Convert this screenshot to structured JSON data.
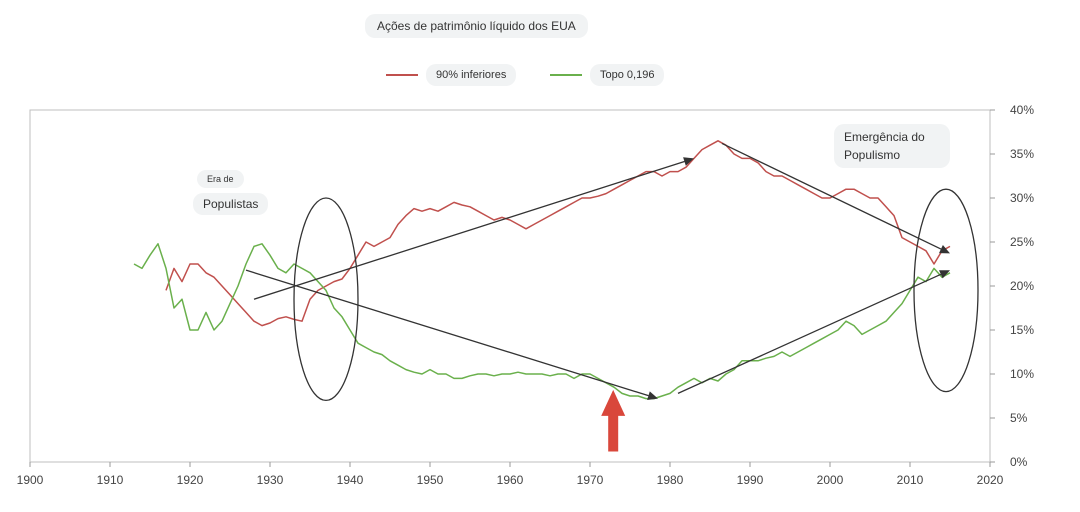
{
  "chart_data": {
    "type": "line",
    "title": "Ações de patrimônio líquido dos EUA",
    "xlabel": "",
    "ylabel": "",
    "xlim": [
      1900,
      2020
    ],
    "ylim": [
      0,
      40
    ],
    "xticks": [
      "1900",
      "1910",
      "1920",
      "1930",
      "1940",
      "1950",
      "1960",
      "1970",
      "1980",
      "1990",
      "2000",
      "2010",
      "2020"
    ],
    "yticks": [
      "0%",
      "5%",
      "10%",
      "15%",
      "20%",
      "25%",
      "30%",
      "35%",
      "40%"
    ],
    "grid": false,
    "legend_position": "top",
    "series": [
      {
        "name": "90% inferiores",
        "color": "#c0504d",
        "points": [
          [
            1917,
            19.5
          ],
          [
            1918,
            22
          ],
          [
            1919,
            20.5
          ],
          [
            1920,
            22.5
          ],
          [
            1921,
            22.5
          ],
          [
            1922,
            21.5
          ],
          [
            1923,
            21
          ],
          [
            1924,
            20
          ],
          [
            1925,
            19
          ],
          [
            1926,
            18
          ],
          [
            1927,
            17
          ],
          [
            1928,
            16
          ],
          [
            1929,
            15.5
          ],
          [
            1930,
            15.8
          ],
          [
            1931,
            16.3
          ],
          [
            1932,
            16.5
          ],
          [
            1933,
            16.2
          ],
          [
            1934,
            16
          ],
          [
            1935,
            18.5
          ],
          [
            1936,
            19.5
          ],
          [
            1937,
            20
          ],
          [
            1938,
            20.5
          ],
          [
            1939,
            20.8
          ],
          [
            1940,
            22
          ],
          [
            1941,
            23.5
          ],
          [
            1942,
            25
          ],
          [
            1943,
            24.5
          ],
          [
            1944,
            25
          ],
          [
            1945,
            25.5
          ],
          [
            1946,
            27
          ],
          [
            1947,
            28
          ],
          [
            1948,
            28.8
          ],
          [
            1949,
            28.5
          ],
          [
            1950,
            28.8
          ],
          [
            1951,
            28.5
          ],
          [
            1952,
            29
          ],
          [
            1953,
            29.5
          ],
          [
            1954,
            29.2
          ],
          [
            1955,
            29
          ],
          [
            1956,
            28.5
          ],
          [
            1957,
            28
          ],
          [
            1958,
            27.5
          ],
          [
            1959,
            27.8
          ],
          [
            1960,
            27.5
          ],
          [
            1961,
            27
          ],
          [
            1962,
            26.5
          ],
          [
            1963,
            27
          ],
          [
            1964,
            27.5
          ],
          [
            1965,
            28
          ],
          [
            1966,
            28.5
          ],
          [
            1967,
            29
          ],
          [
            1968,
            29.5
          ],
          [
            1969,
            30
          ],
          [
            1970,
            30
          ],
          [
            1971,
            30.2
          ],
          [
            1972,
            30.5
          ],
          [
            1973,
            31
          ],
          [
            1974,
            31.5
          ],
          [
            1975,
            32
          ],
          [
            1976,
            32.5
          ],
          [
            1977,
            33
          ],
          [
            1978,
            33
          ],
          [
            1979,
            32.5
          ],
          [
            1980,
            33
          ],
          [
            1981,
            33
          ],
          [
            1982,
            33.5
          ],
          [
            1983,
            34.5
          ],
          [
            1984,
            35.5
          ],
          [
            1985,
            36
          ],
          [
            1986,
            36.5
          ],
          [
            1987,
            36
          ],
          [
            1988,
            35
          ],
          [
            1989,
            34.5
          ],
          [
            1990,
            34.5
          ],
          [
            1991,
            34
          ],
          [
            1992,
            33
          ],
          [
            1993,
            32.5
          ],
          [
            1994,
            32.5
          ],
          [
            1995,
            32
          ],
          [
            1996,
            31.5
          ],
          [
            1997,
            31
          ],
          [
            1998,
            30.5
          ],
          [
            1999,
            30
          ],
          [
            2000,
            30
          ],
          [
            2001,
            30.5
          ],
          [
            2002,
            31
          ],
          [
            2003,
            31
          ],
          [
            2004,
            30.5
          ],
          [
            2005,
            30
          ],
          [
            2006,
            30
          ],
          [
            2007,
            29
          ],
          [
            2008,
            28
          ],
          [
            2009,
            25.5
          ],
          [
            2010,
            25
          ],
          [
            2011,
            24.5
          ],
          [
            2012,
            24
          ],
          [
            2013,
            22.5
          ],
          [
            2014,
            24
          ],
          [
            2015,
            24.5
          ]
        ]
      },
      {
        "name": "Topo 0,196",
        "color": "#6ab04c",
        "points": [
          [
            1913,
            22.5
          ],
          [
            1914,
            22
          ],
          [
            1915,
            23.5
          ],
          [
            1916,
            24.8
          ],
          [
            1917,
            22
          ],
          [
            1918,
            17.5
          ],
          [
            1919,
            18.5
          ],
          [
            1920,
            15
          ],
          [
            1921,
            15
          ],
          [
            1922,
            17
          ],
          [
            1923,
            15
          ],
          [
            1924,
            16
          ],
          [
            1925,
            18
          ],
          [
            1926,
            20
          ],
          [
            1927,
            22.5
          ],
          [
            1928,
            24.5
          ],
          [
            1929,
            24.8
          ],
          [
            1930,
            23.5
          ],
          [
            1931,
            22
          ],
          [
            1932,
            21.5
          ],
          [
            1933,
            22.5
          ],
          [
            1934,
            22
          ],
          [
            1935,
            21.5
          ],
          [
            1936,
            20.5
          ],
          [
            1937,
            19.5
          ],
          [
            1938,
            17.5
          ],
          [
            1939,
            16.5
          ],
          [
            1940,
            15
          ],
          [
            1941,
            13.5
          ],
          [
            1942,
            13
          ],
          [
            1943,
            12.5
          ],
          [
            1944,
            12.2
          ],
          [
            1945,
            11.5
          ],
          [
            1946,
            11
          ],
          [
            1947,
            10.5
          ],
          [
            1948,
            10.2
          ],
          [
            1949,
            10
          ],
          [
            1950,
            10.5
          ],
          [
            1951,
            10
          ],
          [
            1952,
            10
          ],
          [
            1953,
            9.5
          ],
          [
            1954,
            9.5
          ],
          [
            1955,
            9.8
          ],
          [
            1956,
            10
          ],
          [
            1957,
            10
          ],
          [
            1958,
            9.8
          ],
          [
            1959,
            10
          ],
          [
            1960,
            10
          ],
          [
            1961,
            10.2
          ],
          [
            1962,
            10
          ],
          [
            1963,
            10
          ],
          [
            1964,
            10
          ],
          [
            1965,
            9.8
          ],
          [
            1966,
            10
          ],
          [
            1967,
            10
          ],
          [
            1968,
            9.5
          ],
          [
            1969,
            10
          ],
          [
            1970,
            10
          ],
          [
            1971,
            9.5
          ],
          [
            1972,
            9
          ],
          [
            1973,
            8.5
          ],
          [
            1974,
            7.8
          ],
          [
            1975,
            7.5
          ],
          [
            1976,
            7.5
          ],
          [
            1977,
            7.2
          ],
          [
            1978,
            7.2
          ],
          [
            1979,
            7.5
          ],
          [
            1980,
            7.8
          ],
          [
            1981,
            8.5
          ],
          [
            1982,
            9
          ],
          [
            1983,
            9.5
          ],
          [
            1984,
            9
          ],
          [
            1985,
            9.5
          ],
          [
            1986,
            9.2
          ],
          [
            1987,
            10
          ],
          [
            1988,
            10.5
          ],
          [
            1989,
            11.5
          ],
          [
            1990,
            11.5
          ],
          [
            1991,
            11.5
          ],
          [
            1992,
            11.8
          ],
          [
            1993,
            12
          ],
          [
            1994,
            12.5
          ],
          [
            1995,
            12
          ],
          [
            1996,
            12.5
          ],
          [
            1997,
            13
          ],
          [
            1998,
            13.5
          ],
          [
            1999,
            14
          ],
          [
            2000,
            14.5
          ],
          [
            2001,
            15
          ],
          [
            2002,
            16
          ],
          [
            2003,
            15.5
          ],
          [
            2004,
            14.5
          ],
          [
            2005,
            15
          ],
          [
            2006,
            15.5
          ],
          [
            2007,
            16
          ],
          [
            2008,
            17
          ],
          [
            2009,
            18
          ],
          [
            2010,
            19.5
          ],
          [
            2011,
            21
          ],
          [
            2012,
            20.5
          ],
          [
            2013,
            22
          ],
          [
            2014,
            21
          ],
          [
            2015,
            21.5
          ]
        ]
      }
    ],
    "annotations": [
      {
        "text_small": "Era de",
        "text": "Populistas"
      },
      {
        "text": "Emergência do Populismo"
      }
    ],
    "arrows": [
      {
        "from": [
          1928,
          18.5
        ],
        "to": [
          1983,
          34.5
        ],
        "color": "#333333"
      },
      {
        "from": [
          1927,
          21.8
        ],
        "to": [
          1978.5,
          7.2
        ],
        "color": "#333333"
      },
      {
        "from": [
          1986.5,
          36.2
        ],
        "to": [
          2015,
          23.7
        ],
        "color": "#333333"
      },
      {
        "from": [
          1981,
          7.8
        ],
        "to": [
          2015,
          21.8
        ],
        "color": "#333333"
      },
      {
        "from": [
          1972.9,
          1.2
        ],
        "to": [
          1972.9,
          8.2
        ],
        "color": "#d9473b",
        "style": "block"
      }
    ],
    "ellipses": [
      {
        "center": [
          1937,
          18.5
        ],
        "rx_years": 4,
        "ry_pct": 11.5
      },
      {
        "center": [
          2014.5,
          19.5
        ],
        "rx_years": 4,
        "ry_pct": 11.5
      }
    ]
  }
}
